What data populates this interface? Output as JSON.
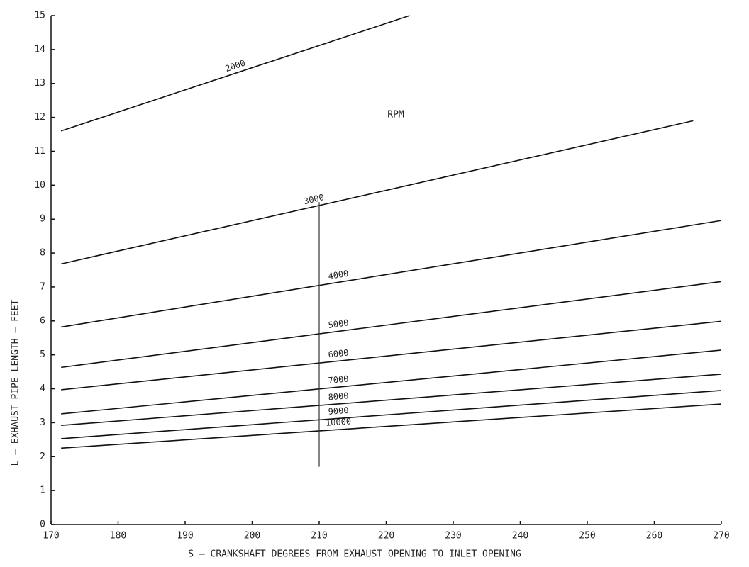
{
  "chart_data": {
    "type": "line",
    "annotation": "RPM",
    "x_label": "S – CRANKSHAFT DEGREES FROM EXHAUST OPENING TO INLET OPENING",
    "y_label": "L – EXHAUST PIPE LENGTH – FEET",
    "xlim": [
      170,
      270
    ],
    "ylim": [
      0,
      15
    ],
    "xticks": [
      170,
      180,
      190,
      200,
      210,
      220,
      230,
      240,
      250,
      260,
      270
    ],
    "yticks": [
      0,
      1,
      2,
      3,
      4,
      5,
      6,
      7,
      8,
      9,
      10,
      11,
      12,
      13,
      14,
      15
    ],
    "grid": false,
    "series": [
      {
        "name": "2000",
        "color": "#111111",
        "x": [
          171.5,
          223.5
        ],
        "values": [
          11.6,
          15.0
        ]
      },
      {
        "name": "3000",
        "color": "#111111",
        "x": [
          171.5,
          265.8
        ],
        "values": [
          7.68,
          11.9
        ]
      },
      {
        "name": "4000",
        "color": "#111111",
        "x": [
          171.5,
          270
        ],
        "values": [
          5.82,
          8.96
        ]
      },
      {
        "name": "5000",
        "color": "#111111",
        "x": [
          171.5,
          270
        ],
        "values": [
          4.63,
          7.16
        ]
      },
      {
        "name": "6000",
        "color": "#111111",
        "x": [
          171.5,
          270
        ],
        "values": [
          3.97,
          5.99
        ]
      },
      {
        "name": "7000",
        "color": "#111111",
        "x": [
          171.5,
          270
        ],
        "values": [
          3.26,
          5.14
        ]
      },
      {
        "name": "8000",
        "color": "#111111",
        "x": [
          171.5,
          270
        ],
        "values": [
          2.92,
          4.43
        ]
      },
      {
        "name": "9000",
        "color": "#111111",
        "x": [
          171.5,
          270
        ],
        "values": [
          2.53,
          3.95
        ]
      },
      {
        "name": "10000",
        "color": "#111111",
        "x": [
          171.5,
          270
        ],
        "values": [
          2.25,
          3.55
        ]
      }
    ],
    "reference_line": {
      "x": 210,
      "y": [
        1.7,
        9.5
      ]
    }
  }
}
